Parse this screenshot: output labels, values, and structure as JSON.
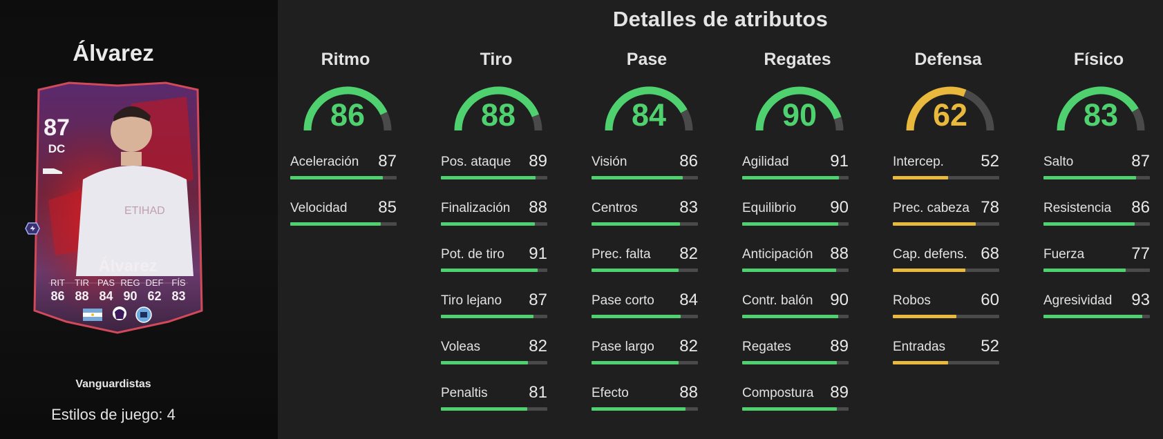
{
  "player": {
    "name": "Álvarez",
    "rating": "87",
    "position": "DC",
    "promo": "Vanguardistas",
    "playstyles_label": "Estilos de juego: 4",
    "mini_stats": [
      {
        "label": "RIT",
        "value": "86"
      },
      {
        "label": "TIR",
        "value": "88"
      },
      {
        "label": "PAS",
        "value": "84"
      },
      {
        "label": "REG",
        "value": "90"
      },
      {
        "label": "DEF",
        "value": "62"
      },
      {
        "label": "FÍS",
        "value": "83"
      }
    ],
    "badges": [
      "argentina-flag-icon",
      "premier-league-icon",
      "manchester-city-crest-icon"
    ]
  },
  "attributes": {
    "title": "Detalles de atributos",
    "colors": {
      "high": "#4fd16f",
      "mid": "#e8b93c",
      "track": "#4a4a4a"
    },
    "categories": [
      {
        "name": "Ritmo",
        "value": 86,
        "color": "#4fd16f",
        "stats": [
          {
            "label": "Aceleración",
            "value": 87
          },
          {
            "label": "Velocidad",
            "value": 85
          }
        ]
      },
      {
        "name": "Tiro",
        "value": 88,
        "color": "#4fd16f",
        "stats": [
          {
            "label": "Pos. ataque",
            "value": 89
          },
          {
            "label": "Finalización",
            "value": 88
          },
          {
            "label": "Pot. de tiro",
            "value": 91
          },
          {
            "label": "Tiro lejano",
            "value": 87
          },
          {
            "label": "Voleas",
            "value": 82
          },
          {
            "label": "Penaltis",
            "value": 81
          }
        ]
      },
      {
        "name": "Pase",
        "value": 84,
        "color": "#4fd16f",
        "stats": [
          {
            "label": "Visión",
            "value": 86
          },
          {
            "label": "Centros",
            "value": 83
          },
          {
            "label": "Prec. falta",
            "value": 82
          },
          {
            "label": "Pase corto",
            "value": 84
          },
          {
            "label": "Pase largo",
            "value": 82
          },
          {
            "label": "Efecto",
            "value": 88
          }
        ]
      },
      {
        "name": "Regates",
        "value": 90,
        "color": "#4fd16f",
        "stats": [
          {
            "label": "Agilidad",
            "value": 91
          },
          {
            "label": "Equilibrio",
            "value": 90
          },
          {
            "label": "Anticipación",
            "value": 88
          },
          {
            "label": "Contr. balón",
            "value": 90
          },
          {
            "label": "Regates",
            "value": 89
          },
          {
            "label": "Compostura",
            "value": 89
          }
        ]
      },
      {
        "name": "Defensa",
        "value": 62,
        "color": "#e8b93c",
        "stats": [
          {
            "label": "Intercep.",
            "value": 52
          },
          {
            "label": "Prec. cabeza",
            "value": 78
          },
          {
            "label": "Cap. defens.",
            "value": 68
          },
          {
            "label": "Robos",
            "value": 60
          },
          {
            "label": "Entradas",
            "value": 52
          }
        ]
      },
      {
        "name": "Físico",
        "value": 83,
        "color": "#4fd16f",
        "stats": [
          {
            "label": "Salto",
            "value": 87
          },
          {
            "label": "Resistencia",
            "value": 86
          },
          {
            "label": "Fuerza",
            "value": 77
          },
          {
            "label": "Agresividad",
            "value": 93
          }
        ]
      }
    ]
  }
}
